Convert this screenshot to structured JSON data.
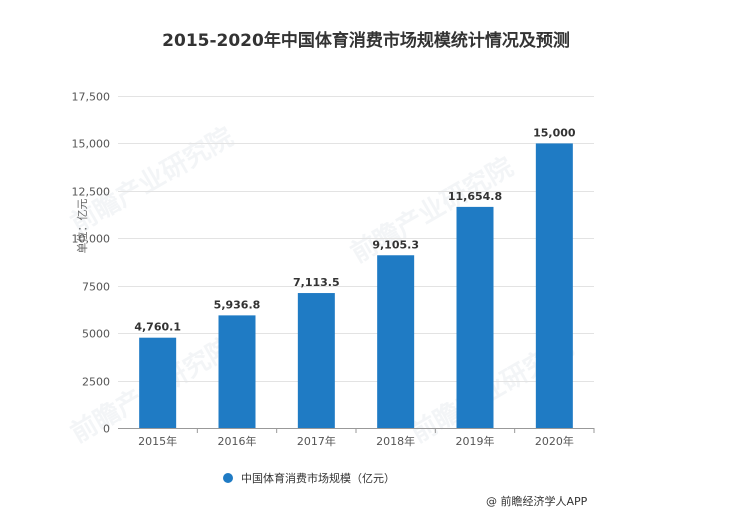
{
  "chart_data": {
    "type": "bar",
    "title": "2015-2020年中国体育消费市场规模统计情况及预测",
    "ylabel": "单位：亿元",
    "xlabel": "",
    "categories": [
      "2015年",
      "2016年",
      "2017年",
      "2018年",
      "2019年",
      "2020年"
    ],
    "series": [
      {
        "name": "中国体育消费市场规模（亿元）",
        "values": [
          4760.1,
          5936.8,
          7113.5,
          9105.3,
          11654.8,
          15000
        ],
        "labels": [
          "4,760.1",
          "5,936.8",
          "7,113.5",
          "9,105.3",
          "11,654.8",
          "15,000"
        ]
      }
    ],
    "ylim": [
      0,
      17500
    ],
    "yticks": [
      0,
      2500,
      5000,
      7500,
      10000,
      12500,
      15000,
      17500
    ],
    "ytick_labels": [
      "0",
      "2500",
      "5000",
      "7500",
      "10,000",
      "12,500",
      "15,000",
      "17,500"
    ],
    "grid": true,
    "legend_position": "bottom-left",
    "color": "#1f7bc4"
  },
  "source": "@ 前瞻经济学人APP",
  "watermark": "前瞻产业研究院"
}
